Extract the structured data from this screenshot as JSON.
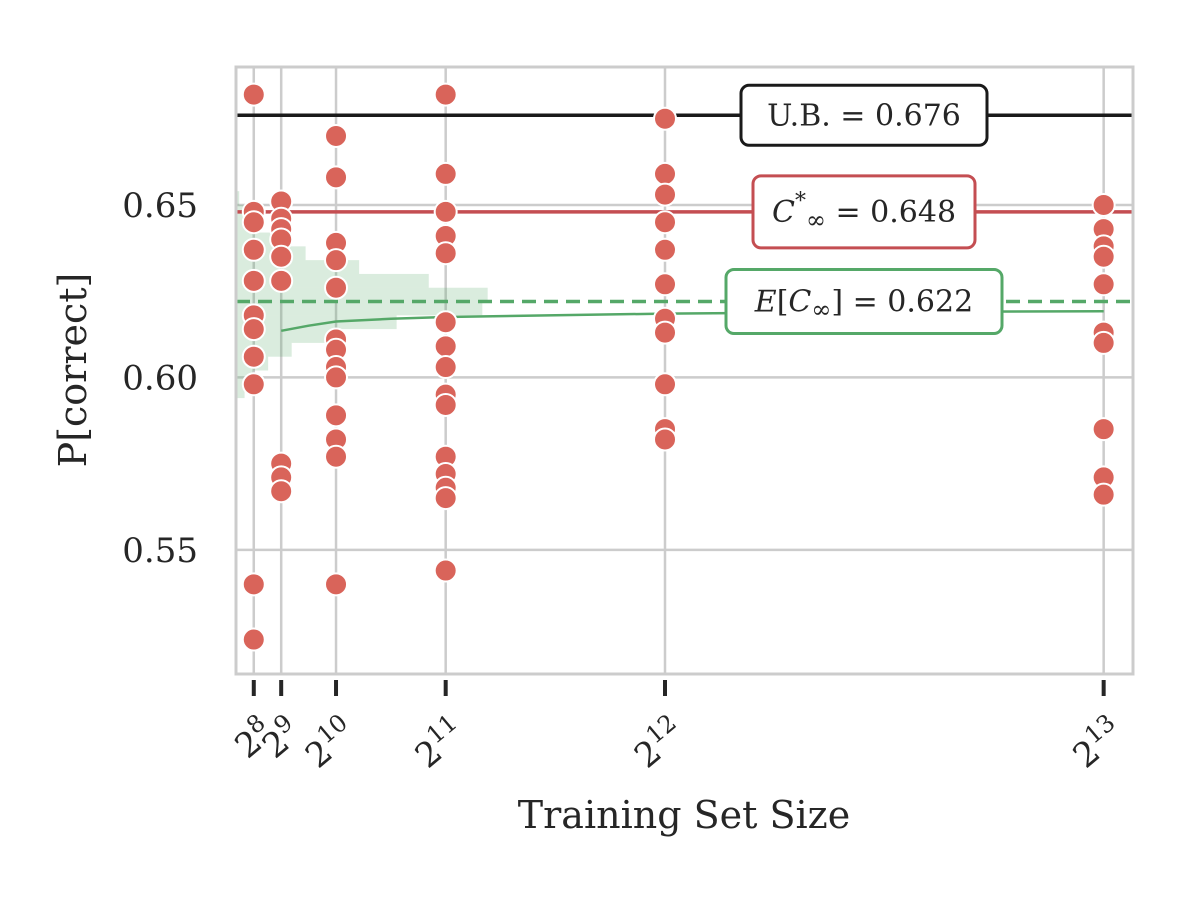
{
  "chart_data": {
    "type": "scatter",
    "xlabel": "Training Set Size",
    "ylabel": "P[correct]",
    "x_scale": "linear",
    "y_ticks": [
      "0.55",
      "0.60",
      "0.65"
    ],
    "y_tick_values": [
      0.55,
      0.6,
      0.65
    ],
    "ylim": [
      0.514,
      0.69
    ],
    "xlim": [
      90,
      8466
    ],
    "x_ticks": [
      {
        "value": 256,
        "base": "2",
        "exp": "8"
      },
      {
        "value": 512,
        "base": "2",
        "exp": "9"
      },
      {
        "value": 1024,
        "base": "2",
        "exp": "10"
      },
      {
        "value": 2048,
        "base": "2",
        "exp": "11"
      },
      {
        "value": 4096,
        "base": "2",
        "exp": "12"
      },
      {
        "value": 8192,
        "base": "2",
        "exp": "13"
      }
    ],
    "grid": true,
    "colors": {
      "points": "#d9645a",
      "upper_bound": "#1a1a1a",
      "c_star": "#c44e52",
      "expected": "#55a868",
      "grid": "#cccccc"
    },
    "reference_lines": [
      {
        "key": "upper_bound",
        "y": 0.676,
        "style": "solid",
        "label": "U.B. = 0.676"
      },
      {
        "key": "c_star",
        "y": 0.648,
        "style": "solid",
        "label": "C*∞ = 0.648"
      },
      {
        "key": "expected",
        "y": 0.622,
        "style": "dashed",
        "label": "E[C∞] = 0.622"
      }
    ],
    "fit_curve": {
      "x": [
        512,
        768,
        1024,
        1536,
        2048,
        3072,
        4096,
        6144,
        8192
      ],
      "y": [
        0.6135,
        0.615,
        0.6162,
        0.617,
        0.6175,
        0.618,
        0.6185,
        0.619,
        0.6192
      ]
    },
    "posterior_histogram": {
      "y_centers": [
        0.596,
        0.6,
        0.604,
        0.608,
        0.612,
        0.616,
        0.62,
        0.624,
        0.628,
        0.632,
        0.636,
        0.64,
        0.644,
        0.648,
        0.652
      ],
      "widths": [
        80,
        160,
        300,
        520,
        900,
        1500,
        2300,
        2350,
        1800,
        1150,
        650,
        330,
        160,
        80,
        30
      ]
    },
    "points": [
      {
        "x": 256,
        "y": [
          0.682,
          0.648,
          0.645,
          0.637,
          0.628,
          0.618,
          0.614,
          0.606,
          0.598,
          0.54,
          0.524
        ]
      },
      {
        "x": 512,
        "y": [
          0.651,
          0.646,
          0.643,
          0.64,
          0.635,
          0.628,
          0.575,
          0.571,
          0.567
        ]
      },
      {
        "x": 1024,
        "y": [
          0.67,
          0.658,
          0.639,
          0.634,
          0.626,
          0.611,
          0.608,
          0.603,
          0.6,
          0.589,
          0.582,
          0.577,
          0.54
        ]
      },
      {
        "x": 2048,
        "y": [
          0.682,
          0.659,
          0.648,
          0.641,
          0.636,
          0.616,
          0.609,
          0.603,
          0.595,
          0.592,
          0.577,
          0.572,
          0.568,
          0.565,
          0.544
        ]
      },
      {
        "x": 4096,
        "y": [
          0.675,
          0.659,
          0.653,
          0.645,
          0.637,
          0.627,
          0.617,
          0.613,
          0.598,
          0.585,
          0.582
        ]
      },
      {
        "x": 8192,
        "y": [
          0.65,
          0.643,
          0.638,
          0.635,
          0.627,
          0.613,
          0.61,
          0.585,
          0.571,
          0.566
        ]
      }
    ]
  }
}
